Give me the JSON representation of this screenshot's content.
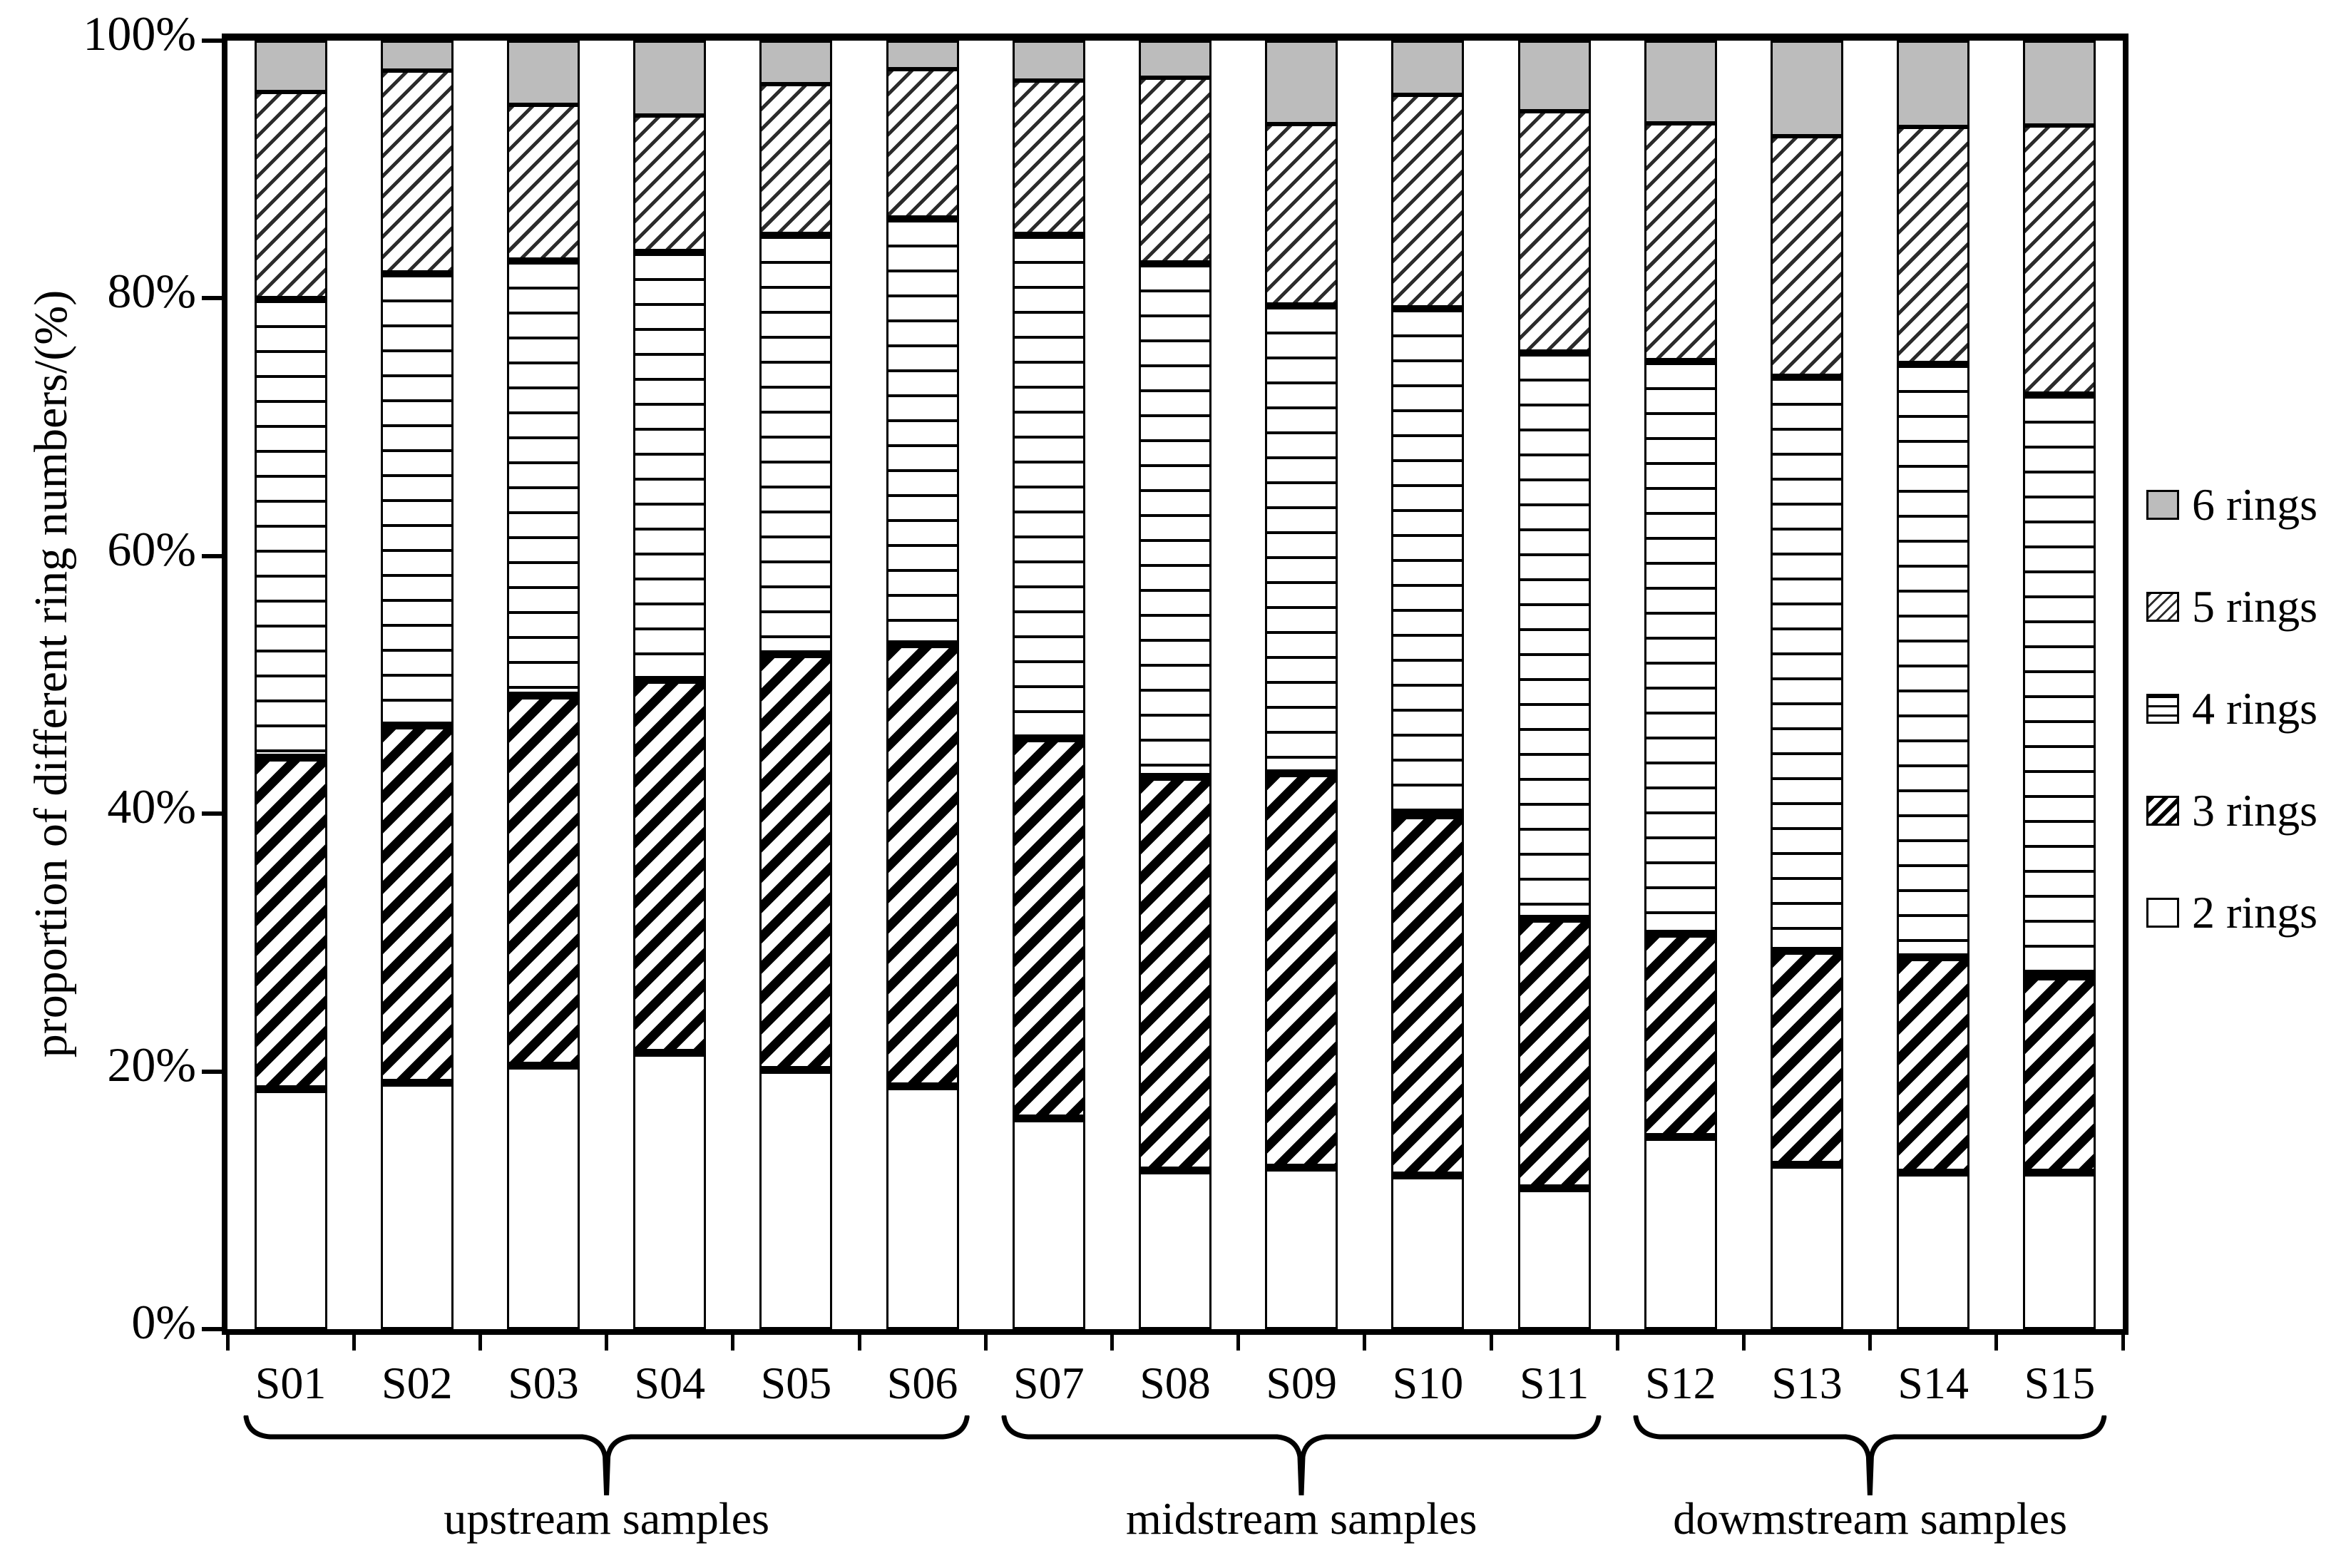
{
  "y_axis": {
    "title": "proportion of different ring numbers/(%)",
    "tick_labels": [
      "0%",
      "20%",
      "40%",
      "60%",
      "80%",
      "100%"
    ],
    "tick_values": [
      0,
      20,
      40,
      60,
      80,
      100
    ]
  },
  "legend": [
    {
      "label": "6 rings",
      "pattern": "solid-gray"
    },
    {
      "label": "5 rings",
      "pattern": "light-diagonal-hatch"
    },
    {
      "label": "4 rings",
      "pattern": "horizontal-lines"
    },
    {
      "label": "3 rings",
      "pattern": "bold-diagonal-hatch"
    },
    {
      "label": "2 rings",
      "pattern": "plain-white"
    }
  ],
  "groups": [
    {
      "label": "upstream samples",
      "from": "S01",
      "to": "S06"
    },
    {
      "label": "midstream samples",
      "from": "S07",
      "to": "S11"
    },
    {
      "label": "dowmstream samples",
      "from": "S12",
      "to": "S15"
    }
  ],
  "colors": {
    "gray_fill": "#bcbcbc",
    "ink": "#000000",
    "background": "#ffffff"
  },
  "chart_data": {
    "type": "bar",
    "stacked": true,
    "unit": "percent",
    "title": "",
    "xlabel": "",
    "ylabel": "proportion of different ring numbers/(%)",
    "ylim": [
      0,
      100
    ],
    "grid": false,
    "legend_position": "right",
    "categories": [
      "S01",
      "S02",
      "S03",
      "S04",
      "S05",
      "S06",
      "S07",
      "S08",
      "S09",
      "S10",
      "S11",
      "S12",
      "S13",
      "S14",
      "S15"
    ],
    "series": [
      {
        "name": "2 rings",
        "pattern": "plain-white",
        "values": [
          18.5,
          19.0,
          20.3,
          21.3,
          20.0,
          18.7,
          16.2,
          12.2,
          12.4,
          11.8,
          10.8,
          14.8,
          12.6,
          12.0,
          12.0
        ]
      },
      {
        "name": "3 rings",
        "pattern": "bold-diagonal-hatch",
        "values": [
          26.0,
          28.0,
          29.0,
          29.2,
          32.5,
          34.6,
          29.8,
          30.8,
          30.9,
          28.2,
          21.2,
          16.0,
          16.9,
          17.0,
          15.5
        ]
      },
      {
        "name": "4 rings",
        "pattern": "horizontal-lines",
        "values": [
          35.5,
          35.0,
          33.7,
          33.2,
          32.5,
          33.0,
          39.0,
          39.8,
          36.2,
          39.3,
          43.9,
          44.4,
          44.5,
          46.0,
          45.1
        ]
      },
      {
        "name": "5 rings",
        "pattern": "light-diagonal-hatch",
        "values": [
          16.0,
          15.7,
          12.0,
          10.5,
          11.6,
          11.5,
          11.9,
          14.3,
          14.0,
          16.5,
          18.6,
          18.4,
          18.6,
          18.3,
          20.8
        ]
      },
      {
        "name": "6 rings",
        "pattern": "solid-gray",
        "values": [
          4.0,
          2.3,
          5.0,
          5.8,
          3.4,
          2.2,
          3.1,
          2.9,
          6.5,
          4.2,
          5.5,
          6.4,
          7.4,
          6.7,
          6.6
        ]
      }
    ]
  }
}
